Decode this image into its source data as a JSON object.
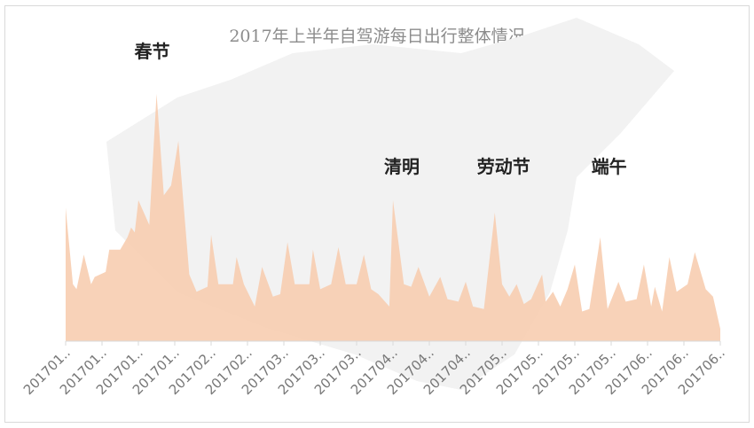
{
  "chart_data": {
    "type": "area",
    "title": "2017年上半年自驾游每日出行整体情况",
    "xlabel": "",
    "ylabel": "",
    "color": "#f7cdb0",
    "grid": false,
    "y_axis_shown": false,
    "tick_labels": [
      "201701..",
      "201701..",
      "201701..",
      "201701..",
      "201702..",
      "201702..",
      "201703..",
      "201703..",
      "201703..",
      "201704..",
      "201704..",
      "201704..",
      "201705..",
      "201705..",
      "201705..",
      "201705..",
      "201706..",
      "201706..",
      "201706.."
    ],
    "annotations": [
      {
        "text": "春节",
        "date": "20170126"
      },
      {
        "text": "清明",
        "date": "20170401"
      },
      {
        "text": "劳动节",
        "date": "20170429"
      },
      {
        "text": "端午",
        "date": "20170528"
      }
    ],
    "points": [
      [
        "20170101",
        54
      ],
      [
        "20170103",
        23
      ],
      [
        "20170104",
        21
      ],
      [
        "20170106",
        35
      ],
      [
        "20170108",
        23
      ],
      [
        "20170109",
        26
      ],
      [
        "20170112",
        28
      ],
      [
        "20170113",
        37
      ],
      [
        "20170115",
        37
      ],
      [
        "20170116",
        37
      ],
      [
        "20170118",
        42
      ],
      [
        "20170119",
        46
      ],
      [
        "20170120",
        44
      ],
      [
        "20170121",
        57
      ],
      [
        "20170124",
        47
      ],
      [
        "20170126",
        100
      ],
      [
        "20170128",
        59
      ],
      [
        "20170130",
        63
      ],
      [
        "20170201",
        81
      ],
      [
        "20170204",
        27
      ],
      [
        "20170206",
        20
      ],
      [
        "20170209",
        22
      ],
      [
        "20170210",
        43
      ],
      [
        "20170212",
        23
      ],
      [
        "20170216",
        23
      ],
      [
        "20170217",
        34
      ],
      [
        "20170219",
        23
      ],
      [
        "20170222",
        14
      ],
      [
        "20170224",
        30
      ],
      [
        "20170227",
        18
      ],
      [
        "20170301",
        19
      ],
      [
        "20170303",
        40
      ],
      [
        "20170305",
        23
      ],
      [
        "20170309",
        23
      ],
      [
        "20170310",
        37
      ],
      [
        "20170312",
        21
      ],
      [
        "20170315",
        23
      ],
      [
        "20170317",
        38
      ],
      [
        "20170319",
        23
      ],
      [
        "20170322",
        23
      ],
      [
        "20170324",
        35
      ],
      [
        "20170326",
        21
      ],
      [
        "20170328",
        19
      ],
      [
        "20170331",
        14
      ],
      [
        "20170401",
        57
      ],
      [
        "20170404",
        23
      ],
      [
        "20170406",
        22
      ],
      [
        "20170408",
        30
      ],
      [
        "20170411",
        18
      ],
      [
        "20170414",
        26
      ],
      [
        "20170416",
        17
      ],
      [
        "20170419",
        16
      ],
      [
        "20170421",
        24
      ],
      [
        "20170423",
        14
      ],
      [
        "20170426",
        13
      ],
      [
        "20170429",
        52
      ],
      [
        "20170501",
        23
      ],
      [
        "20170503",
        18
      ],
      [
        "20170505",
        23
      ],
      [
        "20170507",
        15
      ],
      [
        "20170509",
        17
      ],
      [
        "20170512",
        27
      ],
      [
        "20170513",
        16
      ],
      [
        "20170515",
        20
      ],
      [
        "20170517",
        14
      ],
      [
        "20170519",
        21
      ],
      [
        "20170521",
        31
      ],
      [
        "20170523",
        12
      ],
      [
        "20170525",
        13
      ],
      [
        "20170528",
        42
      ],
      [
        "20170530",
        13
      ],
      [
        "20170602",
        24
      ],
      [
        "20170604",
        16
      ],
      [
        "20170607",
        17
      ],
      [
        "20170609",
        31
      ],
      [
        "20170611",
        14
      ],
      [
        "20170612",
        22
      ],
      [
        "20170614",
        12
      ],
      [
        "20170616",
        34
      ],
      [
        "20170618",
        20
      ],
      [
        "20170621",
        23
      ],
      [
        "20170623",
        36
      ],
      [
        "20170626",
        21
      ],
      [
        "20170628",
        18
      ],
      [
        "20170630",
        5
      ]
    ]
  }
}
